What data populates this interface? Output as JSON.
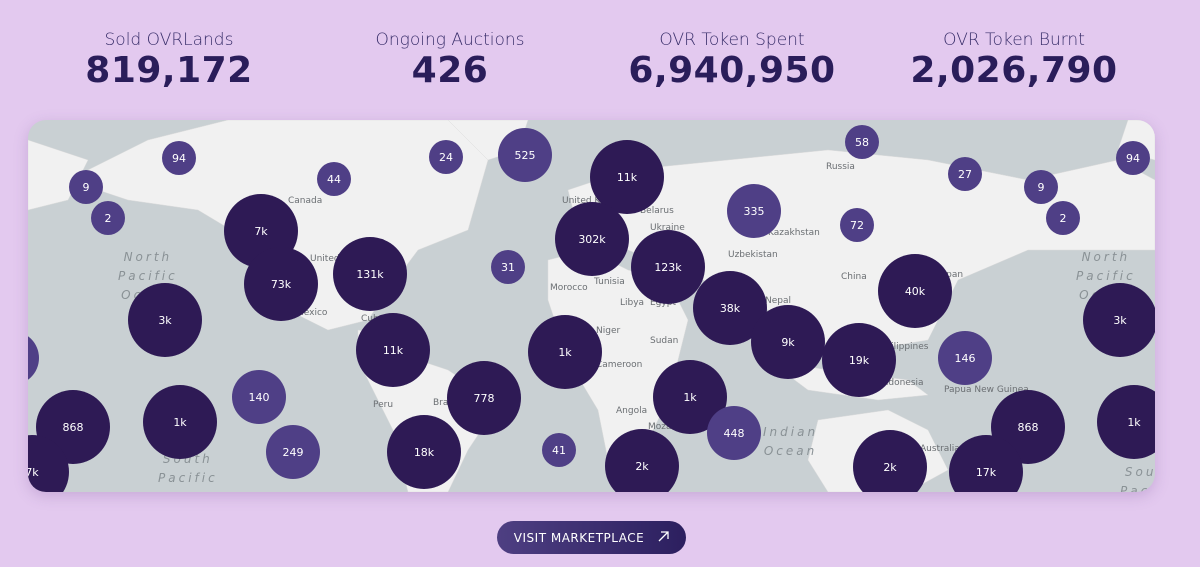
{
  "stats": [
    {
      "label": "Sold OVRLands",
      "value": "819,172"
    },
    {
      "label": "Ongoing Auctions",
      "value": "426"
    },
    {
      "label": "OVR Token Spent",
      "value": "6,940,950"
    },
    {
      "label": "OVR Token Burnt",
      "value": "2,026,790"
    }
  ],
  "map": {
    "labels": [
      "Canada",
      "United States",
      "Mexico",
      "Cuba",
      "Peru",
      "Brazil",
      "United Kingdom",
      "Belarus",
      "Ukraine",
      "Morocco",
      "Tunisia",
      "Libya",
      "Egypt",
      "Niger",
      "Sudan",
      "Cameroon",
      "Angola",
      "Mozambique",
      "Russia",
      "Kazakhstan",
      "Uzbekistan",
      "China",
      "Japan",
      "Nepal",
      "Philippines",
      "Indonesia",
      "Papua New Guinea",
      "Australia"
    ],
    "oceans": [
      "North Pacific Ocean",
      "North Pacific Ocean",
      "South Pacific Ocean",
      "Indian Ocean",
      "South Pacific Ocean"
    ],
    "clusters": [
      {
        "label": "9",
        "tone": "light"
      },
      {
        "label": "2",
        "tone": "light"
      },
      {
        "label": "94",
        "tone": "light"
      },
      {
        "label": "44",
        "tone": "light"
      },
      {
        "label": "24",
        "tone": "light"
      },
      {
        "label": "525",
        "tone": "light"
      },
      {
        "label": "11k",
        "tone": "dark"
      },
      {
        "label": "7k",
        "tone": "dark"
      },
      {
        "label": "73k",
        "tone": "dark"
      },
      {
        "label": "131k",
        "tone": "dark"
      },
      {
        "label": "31",
        "tone": "light"
      },
      {
        "label": "302k",
        "tone": "dark"
      },
      {
        "label": "123k",
        "tone": "dark"
      },
      {
        "label": "335",
        "tone": "light"
      },
      {
        "label": "58",
        "tone": "light"
      },
      {
        "label": "72",
        "tone": "light"
      },
      {
        "label": "27",
        "tone": "light"
      },
      {
        "label": "9",
        "tone": "light"
      },
      {
        "label": "2",
        "tone": "light"
      },
      {
        "label": "94",
        "tone": "light"
      },
      {
        "label": "3k",
        "tone": "dark"
      },
      {
        "label": "11k",
        "tone": "dark"
      },
      {
        "label": "1k",
        "tone": "dark"
      },
      {
        "label": "38k",
        "tone": "dark"
      },
      {
        "label": "9k",
        "tone": "dark"
      },
      {
        "label": "19k",
        "tone": "dark"
      },
      {
        "label": "40k",
        "tone": "dark"
      },
      {
        "label": "146",
        "tone": "light"
      },
      {
        "label": "3k",
        "tone": "dark"
      },
      {
        "label": "140",
        "tone": "light"
      },
      {
        "label": "778",
        "tone": "dark"
      },
      {
        "label": "1k",
        "tone": "dark"
      },
      {
        "label": "448",
        "tone": "light"
      },
      {
        "label": "868",
        "tone": "dark"
      },
      {
        "label": "1k",
        "tone": "dark"
      },
      {
        "label": "249",
        "tone": "light"
      },
      {
        "label": "18k",
        "tone": "dark"
      },
      {
        "label": "41",
        "tone": "light"
      },
      {
        "label": "2k",
        "tone": "dark"
      },
      {
        "label": "2k",
        "tone": "dark"
      },
      {
        "label": "868",
        "tone": "dark"
      },
      {
        "label": "17k",
        "tone": "dark"
      },
      {
        "label": "1k",
        "tone": "dark"
      },
      {
        "label": "7k",
        "tone": "dark"
      },
      {
        "label": "",
        "tone": "light"
      }
    ],
    "colors": {
      "dark": "#2e1a55",
      "light": "#4f3f86",
      "ocean": "#c9d0d3",
      "land": "#f1f1f1"
    }
  },
  "cta": {
    "label": "VISIT MARKETPLACE",
    "icon": "arrow-up-right-icon"
  }
}
